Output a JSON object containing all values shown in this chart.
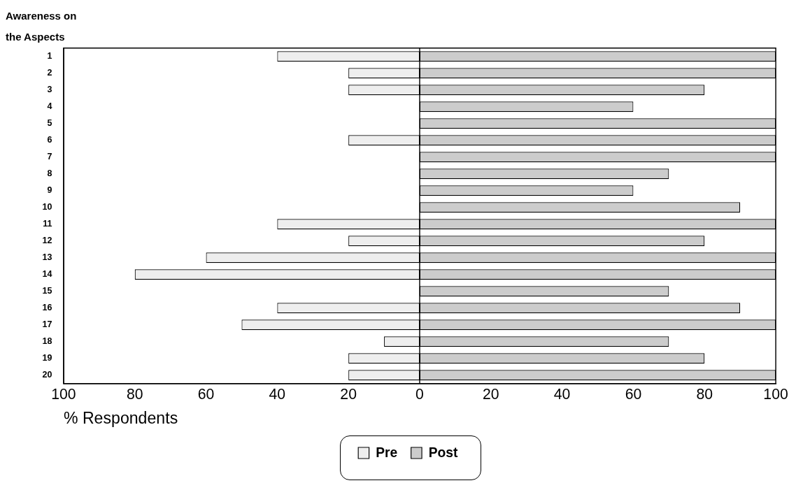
{
  "chart_data": {
    "type": "bar",
    "orientation": "horizontal",
    "stacked": true,
    "ylabel": "Awareness on the Aspects",
    "xlabel": "% Respondents",
    "categories": [
      "1",
      "2",
      "3",
      "4",
      "5",
      "6",
      "7",
      "8",
      "9",
      "10",
      "11",
      "12",
      "13",
      "14",
      "15",
      "16",
      "17",
      "18",
      "19",
      "20"
    ],
    "series": [
      {
        "name": "Pre",
        "color": "#eeeeee",
        "values": [
          -40,
          -20,
          -20,
          null,
          null,
          -20,
          null,
          null,
          null,
          null,
          -40,
          -20,
          -60,
          -80,
          null,
          -40,
          -50,
          -10,
          -20,
          -20
        ]
      },
      {
        "name": "Post",
        "color": "#cccccc",
        "values": [
          100,
          100,
          80,
          60,
          100,
          100,
          100,
          70,
          60,
          90,
          100,
          80,
          100,
          100,
          70,
          90,
          100,
          70,
          80,
          100
        ]
      }
    ],
    "xlim": [
      -100,
      100
    ],
    "xticks": [
      {
        "value": -100,
        "label": "100"
      },
      {
        "value": -80,
        "label": "80"
      },
      {
        "value": -60,
        "label": "60"
      },
      {
        "value": -40,
        "label": "40"
      },
      {
        "value": -20,
        "label": "20"
      },
      0,
      20,
      40,
      60,
      80,
      100
    ],
    "ref_lines": [
      {
        "axis": "x",
        "value": 0
      }
    ],
    "grid": false,
    "legend": "bottom"
  }
}
